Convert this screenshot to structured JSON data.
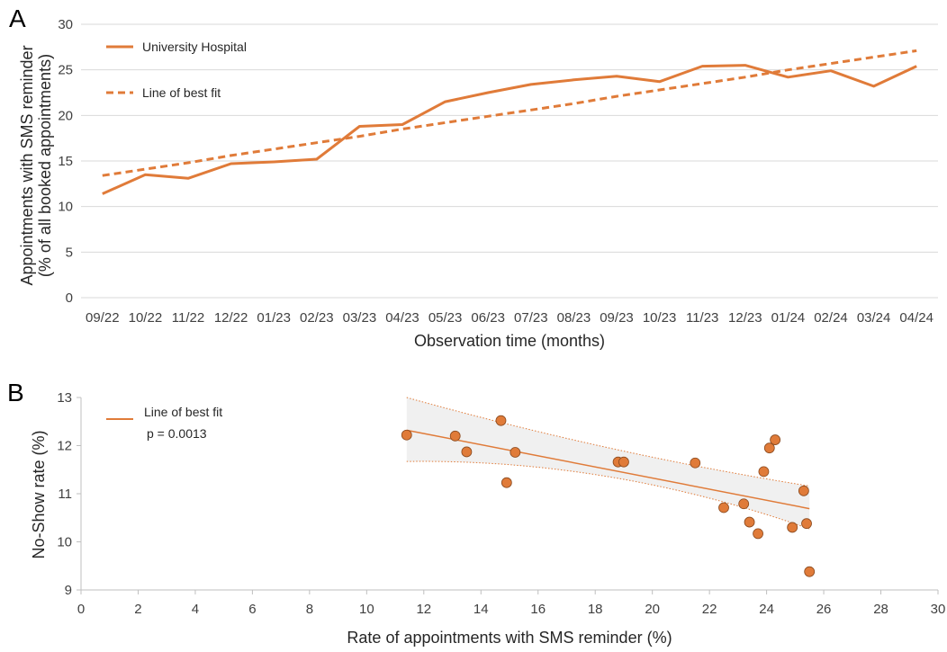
{
  "chart_data": [
    {
      "type": "line",
      "panel_label": "A",
      "xlabel": "Observation time (months)",
      "ylabel_line1": "Appointments with SMS reminder",
      "ylabel_line2": "(% of all booked appointments)",
      "categories": [
        "09/22",
        "10/22",
        "11/22",
        "12/22",
        "01/23",
        "02/23",
        "03/23",
        "04/23",
        "05/23",
        "06/23",
        "07/23",
        "08/23",
        "09/23",
        "10/23",
        "11/23",
        "12/23",
        "01/24",
        "02/24",
        "03/24",
        "04/24"
      ],
      "ylim": [
        0,
        30
      ],
      "yticks": [
        0,
        5,
        10,
        15,
        20,
        25,
        30
      ],
      "grid": true,
      "legend_position": "top-left",
      "series": [
        {
          "name": "University Hospital",
          "style": "solid",
          "values": [
            11.4,
            13.5,
            13.1,
            14.7,
            14.9,
            15.2,
            18.8,
            19.0,
            21.5,
            22.5,
            23.4,
            23.9,
            24.3,
            23.7,
            25.4,
            25.5,
            24.2,
            24.9,
            23.2,
            25.4
          ]
        },
        {
          "name": "Line of best fit",
          "style": "dashed",
          "values": [
            13.4,
            14.1,
            14.8,
            15.6,
            16.3,
            17.0,
            17.7,
            18.5,
            19.2,
            19.9,
            20.6,
            21.3,
            22.1,
            22.8,
            23.5,
            24.2,
            25.0,
            25.7,
            26.4,
            27.1
          ]
        }
      ],
      "color": "#e07b39"
    },
    {
      "type": "scatter",
      "panel_label": "B",
      "xlabel": "Rate of appointments with SMS reminder (%)",
      "ylabel": "No-Show rate (%)",
      "xlim": [
        0,
        30
      ],
      "ylim": [
        9,
        13
      ],
      "xticks": [
        0,
        2,
        4,
        6,
        8,
        10,
        12,
        14,
        16,
        18,
        20,
        22,
        24,
        26,
        28,
        30
      ],
      "yticks": [
        9,
        10,
        11,
        12,
        13
      ],
      "legend_position": "top-left",
      "legend_label": "Line of best fit",
      "p_value_text": "p = 0.0013",
      "points": [
        {
          "x": 11.4,
          "y": 12.22
        },
        {
          "x": 13.1,
          "y": 12.2
        },
        {
          "x": 13.5,
          "y": 11.87
        },
        {
          "x": 14.7,
          "y": 12.52
        },
        {
          "x": 14.9,
          "y": 11.23
        },
        {
          "x": 15.2,
          "y": 11.86
        },
        {
          "x": 18.8,
          "y": 11.66
        },
        {
          "x": 19.0,
          "y": 11.66
        },
        {
          "x": 21.5,
          "y": 11.64
        },
        {
          "x": 22.5,
          "y": 10.71
        },
        {
          "x": 23.2,
          "y": 10.79
        },
        {
          "x": 23.4,
          "y": 10.41
        },
        {
          "x": 23.7,
          "y": 10.17
        },
        {
          "x": 23.9,
          "y": 11.46
        },
        {
          "x": 24.1,
          "y": 11.95
        },
        {
          "x": 24.3,
          "y": 12.12
        },
        {
          "x": 24.9,
          "y": 10.3
        },
        {
          "x": 25.3,
          "y": 11.06
        },
        {
          "x": 25.4,
          "y": 10.38
        },
        {
          "x": 25.5,
          "y": 9.38
        }
      ],
      "fit_line": {
        "x": [
          11.4,
          25.5
        ],
        "y": [
          12.32,
          10.69
        ]
      },
      "ci_upper": {
        "x": [
          11.4,
          18.5,
          25.5
        ],
        "y": [
          13.0,
          11.95,
          11.16
        ]
      },
      "ci_lower": {
        "x": [
          11.4,
          18.5,
          25.5
        ],
        "y": [
          11.67,
          11.35,
          10.27
        ]
      },
      "color": "#e07b39",
      "band_color": "#f0f0f0"
    }
  ]
}
